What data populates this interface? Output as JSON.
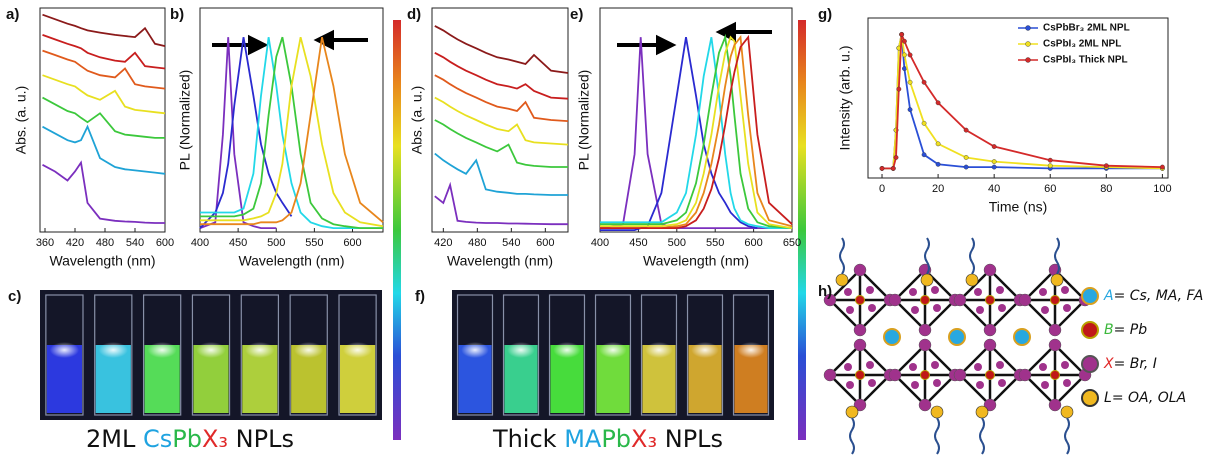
{
  "chart_data": [
    {
      "type": "line",
      "label": "a)",
      "xlabel": "Wavelength (nm)",
      "ylabel": "Abs. (a. u.)",
      "x": [
        355,
        380,
        405,
        420,
        432,
        445,
        470,
        500,
        520,
        540,
        560,
        580,
        600
      ],
      "xlim": [
        350,
        600
      ],
      "xticks": [
        360,
        420,
        480,
        540,
        600
      ],
      "ylim": [
        0,
        10
      ],
      "series": [
        {
          "color": "#7b2fbe",
          "values": [
            3.0,
            2.7,
            2.3,
            2.7,
            3.1,
            1.3,
            0.6,
            0.5,
            0.47,
            0.45,
            0.42,
            0.4,
            0.4
          ]
        },
        {
          "color": "#1fa3d6",
          "values": [
            4.7,
            4.4,
            4.1,
            4.0,
            4.1,
            4.7,
            3.3,
            2.9,
            2.8,
            2.75,
            2.7,
            2.65,
            2.6
          ]
        },
        {
          "color": "#3cc83c",
          "values": [
            6.0,
            5.7,
            5.4,
            5.3,
            5.1,
            4.9,
            5.3,
            4.5,
            4.35,
            4.3,
            4.25,
            4.2,
            4.2
          ]
        },
        {
          "color": "#e8e020",
          "values": [
            7.0,
            6.8,
            6.6,
            6.5,
            6.3,
            6.1,
            5.9,
            6.3,
            5.6,
            5.45,
            5.4,
            5.35,
            5.3
          ]
        },
        {
          "color": "#e05a1c",
          "values": [
            8.1,
            7.9,
            7.7,
            7.6,
            7.4,
            7.2,
            7.0,
            6.9,
            7.3,
            6.6,
            6.5,
            6.45,
            6.4
          ]
        },
        {
          "color": "#c81e1e",
          "values": [
            8.8,
            8.6,
            8.4,
            8.3,
            8.2,
            8.0,
            7.8,
            7.65,
            7.6,
            8.0,
            7.4,
            7.35,
            7.3
          ]
        },
        {
          "color": "#8b1a1a",
          "values": [
            9.7,
            9.5,
            9.3,
            9.2,
            9.1,
            9.0,
            8.9,
            8.8,
            8.75,
            8.7,
            9.1,
            8.4,
            8.3
          ]
        }
      ]
    },
    {
      "type": "line",
      "label": "b)",
      "xlabel": "Wavelength (nm)",
      "ylabel": "PL (Normalized)",
      "x": [
        400,
        420,
        430,
        437,
        445,
        457,
        470,
        480,
        490,
        500,
        508,
        520,
        532,
        545,
        560,
        575,
        590,
        610,
        640
      ],
      "xlim": [
        400,
        640
      ],
      "xticks": [
        400,
        450,
        500,
        550,
        600
      ],
      "ylim": [
        0,
        1.15
      ],
      "series": [
        {
          "color": "#7b2fbe",
          "values": [
            0.02,
            0.05,
            0.5,
            1,
            0.4,
            0.05,
            0.03,
            0.02,
            0.02,
            0.02,
            null,
            null,
            null,
            null,
            null,
            null,
            null,
            null,
            null
          ]
        },
        {
          "color": "#2a2ad0",
          "values": [
            0.02,
            0.1,
            0.2,
            0.35,
            0.65,
            1,
            0.7,
            0.45,
            0.3,
            0.2,
            0.15,
            0.08,
            null,
            null,
            null,
            null,
            null,
            null,
            null
          ]
        },
        {
          "color": "#22d8e8",
          "values": [
            0.1,
            0.1,
            0.1,
            0.1,
            0.1,
            0.12,
            0.3,
            0.7,
            1,
            0.75,
            0.5,
            0.25,
            0.1,
            0.05,
            0.03,
            0.02,
            0.02,
            0.02,
            0.02
          ]
        },
        {
          "color": "#3cc83c",
          "values": [
            0.08,
            0.08,
            0.08,
            0.08,
            0.08,
            0.09,
            0.12,
            0.25,
            0.6,
            0.9,
            1,
            0.75,
            0.4,
            0.15,
            0.07,
            0.04,
            0.03,
            0.02,
            0.02
          ]
        },
        {
          "color": "#e8e020",
          "values": [
            0.06,
            0.06,
            0.06,
            0.06,
            0.06,
            0.06,
            0.07,
            0.08,
            0.1,
            0.2,
            0.35,
            0.75,
            1,
            0.8,
            0.45,
            0.2,
            0.1,
            0.05,
            0.03
          ]
        },
        {
          "color": "#e8861c",
          "values": [
            0.04,
            0.04,
            0.04,
            0.04,
            0.04,
            0.04,
            0.04,
            0.05,
            0.05,
            0.05,
            0.06,
            0.1,
            0.25,
            0.6,
            1,
            0.75,
            0.4,
            0.15,
            0.05
          ]
        }
      ]
    },
    {
      "type": "line",
      "label": "d)",
      "xlabel": "Wavelength (nm)",
      "ylabel": "Abs. (a. u.)",
      "x": [
        405,
        420,
        432,
        445,
        460,
        478,
        495,
        515,
        535,
        550,
        565,
        580,
        610,
        640
      ],
      "xlim": [
        400,
        640
      ],
      "xticks": [
        420,
        480,
        540,
        600
      ],
      "ylim": [
        0,
        10
      ],
      "series": [
        {
          "color": "#7b2fbe",
          "values": [
            1.6,
            1.3,
            2.1,
            0.5,
            0.45,
            0.42,
            0.4,
            0.4,
            0.38,
            0.38,
            0.37,
            0.36,
            0.35,
            0.35
          ]
        },
        {
          "color": "#1fa3d6",
          "values": [
            3.5,
            3.2,
            3.0,
            2.8,
            2.6,
            3.2,
            1.9,
            1.8,
            1.75,
            1.7,
            1.7,
            1.68,
            1.65,
            1.65
          ]
        },
        {
          "color": "#3cc83c",
          "values": [
            5.0,
            4.8,
            4.6,
            4.4,
            4.2,
            4.0,
            3.8,
            3.6,
            3.9,
            3.1,
            3.0,
            2.95,
            2.9,
            2.9
          ]
        },
        {
          "color": "#e8e020",
          "values": [
            6.0,
            5.8,
            5.6,
            5.4,
            5.2,
            5.0,
            4.8,
            4.6,
            4.5,
            4.8,
            4.1,
            4.0,
            3.95,
            3.9
          ]
        },
        {
          "color": "#e05a1c",
          "values": [
            7.0,
            6.8,
            6.6,
            6.4,
            6.2,
            6.0,
            5.8,
            5.6,
            5.5,
            5.4,
            5.8,
            5.1,
            5.0,
            4.95
          ]
        },
        {
          "color": "#c81e1e",
          "values": [
            8.0,
            7.8,
            7.6,
            7.4,
            7.2,
            7.0,
            6.8,
            6.6,
            6.5,
            6.4,
            6.6,
            6.3,
            6.0,
            5.95
          ]
        },
        {
          "color": "#8b1a1a",
          "values": [
            9.2,
            9.0,
            8.8,
            8.6,
            8.4,
            8.2,
            8.0,
            7.8,
            7.7,
            7.6,
            7.5,
            7.9,
            7.2,
            7.1
          ]
        }
      ]
    },
    {
      "type": "line",
      "label": "e)",
      "xlabel": "Wavelength (nm)",
      "ylabel": "PL (Normalized)",
      "x": [
        400,
        430,
        445,
        453,
        462,
        480,
        500,
        512,
        525,
        535,
        545,
        555,
        563,
        570,
        575,
        583,
        593,
        605,
        620,
        650
      ],
      "xlim": [
        400,
        650
      ],
      "xticks": [
        400,
        450,
        500,
        550,
        600,
        650
      ],
      "ylim": [
        0,
        1.15
      ],
      "series": [
        {
          "color": "#7b2fbe",
          "values": [
            0.02,
            0.04,
            0.4,
            1,
            0.4,
            0.04,
            0.02,
            0.02,
            0.02,
            0.02,
            0.02,
            0.02,
            0.02,
            0.02,
            0.02,
            0.02,
            0.02,
            0.02,
            0.02,
            0.02
          ]
        },
        {
          "color": "#2a2ad0",
          "values": [
            0.01,
            0.01,
            0.01,
            0.02,
            0.03,
            0.2,
            0.7,
            1,
            0.7,
            0.45,
            0.3,
            0.2,
            0.15,
            0.1,
            0.08,
            0.05,
            0.03,
            0.02,
            null,
            null
          ]
        },
        {
          "color": "#22d8e8",
          "values": [
            0.05,
            0.05,
            0.05,
            0.05,
            0.05,
            0.05,
            0.1,
            0.2,
            0.5,
            0.8,
            1,
            0.7,
            0.4,
            0.2,
            0.12,
            0.06,
            0.04,
            0.03,
            0.02,
            0.02
          ]
        },
        {
          "color": "#3cc83c",
          "values": [
            0.04,
            0.04,
            0.04,
            0.04,
            0.04,
            0.04,
            0.06,
            0.1,
            0.25,
            0.45,
            0.7,
            0.92,
            1,
            0.8,
            0.6,
            0.3,
            0.12,
            0.05,
            0.03,
            0.02
          ]
        },
        {
          "color": "#e8e020",
          "values": [
            0.03,
            0.03,
            0.03,
            0.03,
            0.03,
            0.03,
            0.04,
            0.06,
            0.15,
            0.3,
            0.5,
            0.75,
            0.92,
            1,
            0.98,
            0.7,
            0.35,
            0.1,
            0.04,
            0.02
          ]
        },
        {
          "color": "#e8861c",
          "values": [
            0.02,
            0.02,
            0.02,
            0.02,
            0.02,
            0.02,
            0.03,
            0.04,
            0.1,
            0.2,
            0.35,
            0.55,
            0.75,
            0.9,
            0.96,
            1,
            0.6,
            0.2,
            0.06,
            0.03
          ]
        },
        {
          "color": "#c81e1e",
          "values": [
            0.02,
            0.02,
            0.02,
            0.02,
            0.02,
            0.02,
            0.02,
            0.03,
            0.06,
            0.12,
            0.22,
            0.38,
            0.55,
            0.72,
            0.82,
            0.95,
            1,
            0.5,
            0.15,
            0.04
          ]
        }
      ]
    },
    {
      "type": "line",
      "label": "g)",
      "xlabel": "Time (ns)",
      "ylabel": "Intensity (arb. u.)",
      "markers": true,
      "legend": "upper right",
      "x": [
        0,
        4,
        5,
        6,
        7,
        8,
        10,
        15,
        20,
        30,
        40,
        60,
        80,
        100
      ],
      "xlim": [
        -5,
        102
      ],
      "xticks": [
        0,
        20,
        40,
        60,
        80,
        100
      ],
      "ylim": [
        -0.05,
        1.12
      ],
      "series": [
        {
          "name": "CsPbBr₃ 2ML NPL",
          "color": "#2a4fd6",
          "values": [
            0.02,
            0.02,
            0.3,
            0.9,
            1,
            0.75,
            0.45,
            0.12,
            0.05,
            0.03,
            0.03,
            0.02,
            0.02,
            0.02
          ]
        },
        {
          "name": "CsPbI₃ 2ML NPL",
          "color": "#f0e020",
          "values": [
            0.02,
            0.02,
            0.3,
            0.9,
            1,
            0.85,
            0.65,
            0.35,
            0.2,
            0.1,
            0.07,
            0.04,
            0.03,
            0.02
          ]
        },
        {
          "name": "CsPbI₃ Thick NPL",
          "color": "#d42a2a",
          "values": [
            0.02,
            0.02,
            0.1,
            0.6,
            1,
            0.95,
            0.85,
            0.65,
            0.5,
            0.3,
            0.18,
            0.08,
            0.04,
            0.03
          ]
        }
      ]
    }
  ],
  "photos": [
    {
      "label": "c)",
      "caption": [
        "2ML ",
        "Cs",
        "Pb",
        "X₃",
        " NPLs"
      ]
    },
    {
      "label": "f)",
      "caption": [
        "Thick ",
        "MA",
        "Pb",
        "X₃",
        " NPLs"
      ]
    }
  ],
  "diagram": {
    "label": "h)",
    "legend": [
      {
        "symbol": "A",
        "text": "= Cs, MA, FA"
      },
      {
        "symbol": "B",
        "text": "= Pb"
      },
      {
        "symbol": "X",
        "text": "= Br, I"
      },
      {
        "symbol": "L",
        "text": "= OA, OLA"
      }
    ]
  }
}
